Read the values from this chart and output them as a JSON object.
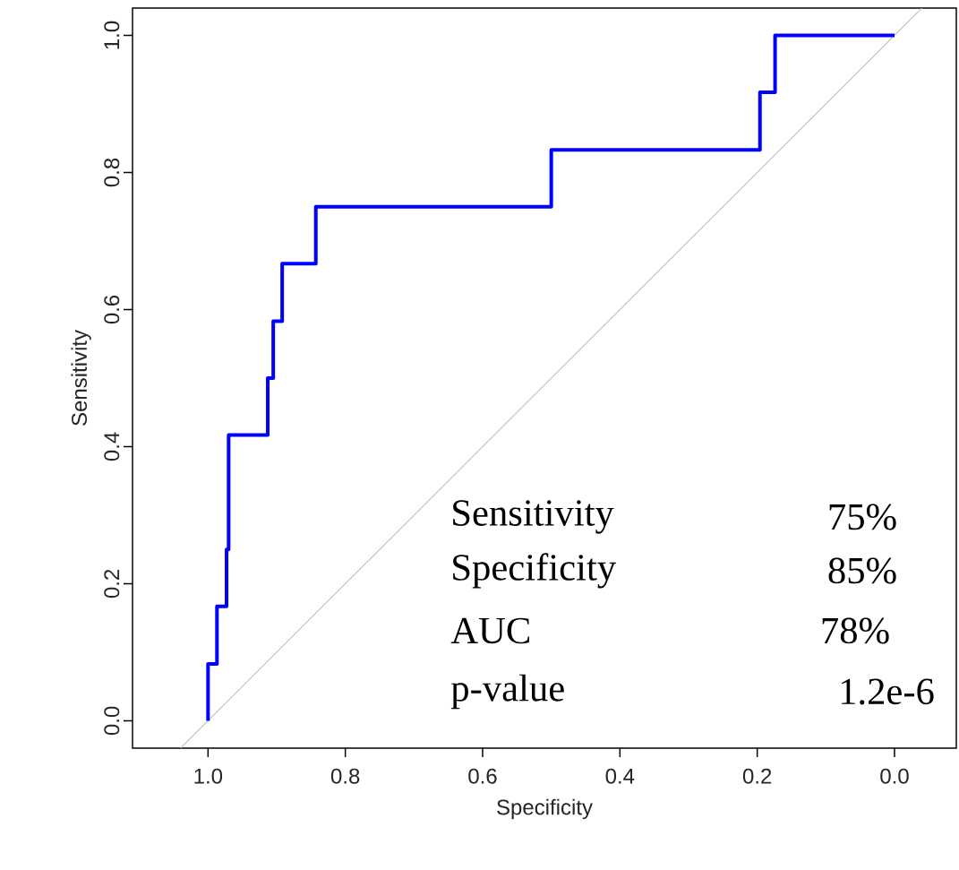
{
  "chart_data": {
    "type": "line",
    "xlabel": "Specificity",
    "ylabel": "Sensitivity",
    "xlim": [
      1.11,
      -0.09
    ],
    "ylim": [
      -0.04,
      1.04
    ],
    "xticks": [
      {
        "value": 1.0,
        "label": "1.0"
      },
      {
        "value": 0.8,
        "label": "0.8"
      },
      {
        "value": 0.6,
        "label": "0.6"
      },
      {
        "value": 0.4,
        "label": "0.4"
      },
      {
        "value": 0.2,
        "label": "0.2"
      },
      {
        "value": 0.0,
        "label": "0.0"
      }
    ],
    "yticks": [
      {
        "value": 0.0,
        "label": "0.0"
      },
      {
        "value": 0.2,
        "label": "0.2"
      },
      {
        "value": 0.4,
        "label": "0.4"
      },
      {
        "value": 0.6,
        "label": "0.6"
      },
      {
        "value": 0.8,
        "label": "0.8"
      },
      {
        "value": 1.0,
        "label": "1.0"
      }
    ],
    "grid": false,
    "marker": "none",
    "series": [
      {
        "color": "#bebebe",
        "line_style": "solid",
        "x": [
          1.04,
          -0.04
        ],
        "values": [
          -0.04,
          1.04
        ]
      },
      {
        "color": "#0000ff",
        "line_style": "solid",
        "x": [
          1.0,
          1.0,
          0.987,
          0.987,
          0.973,
          0.973,
          0.97,
          0.97,
          0.913,
          0.913,
          0.905,
          0.905,
          0.892,
          0.892,
          0.843,
          0.843,
          0.5,
          0.5,
          0.196,
          0.196,
          0.174,
          0.174,
          0.0
        ],
        "values": [
          0.0,
          0.083,
          0.083,
          0.167,
          0.167,
          0.25,
          0.25,
          0.417,
          0.417,
          0.5,
          0.5,
          0.583,
          0.583,
          0.667,
          0.667,
          0.75,
          0.75,
          0.833,
          0.833,
          0.917,
          0.917,
          1.0,
          1.0
        ]
      }
    ],
    "annotations": [
      "Sensitivity",
      "75%",
      "Specificity",
      "85%",
      "AUC",
      "78%",
      "p-value",
      "1.2e-6"
    ]
  }
}
